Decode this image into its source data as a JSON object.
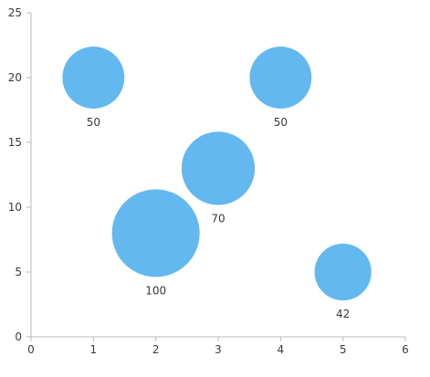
{
  "chart_data": {
    "type": "scatter",
    "title": "",
    "xlabel": "",
    "ylabel": "",
    "xlim": [
      0,
      6
    ],
    "ylim": [
      0,
      25
    ],
    "x_ticks": [
      0,
      1,
      2,
      3,
      4,
      5,
      6
    ],
    "y_ticks": [
      0,
      5,
      10,
      15,
      20,
      25
    ],
    "grid": false,
    "legend": "none",
    "bubble_color": "#63b8ef",
    "points": [
      {
        "x": 1,
        "y": 20,
        "size": 50,
        "label": "50"
      },
      {
        "x": 2,
        "y": 8,
        "size": 100,
        "label": "100"
      },
      {
        "x": 3,
        "y": 13,
        "size": 70,
        "label": "70"
      },
      {
        "x": 4,
        "y": 20,
        "size": 50,
        "label": "50"
      },
      {
        "x": 5,
        "y": 5,
        "size": 42,
        "label": "42"
      }
    ]
  }
}
